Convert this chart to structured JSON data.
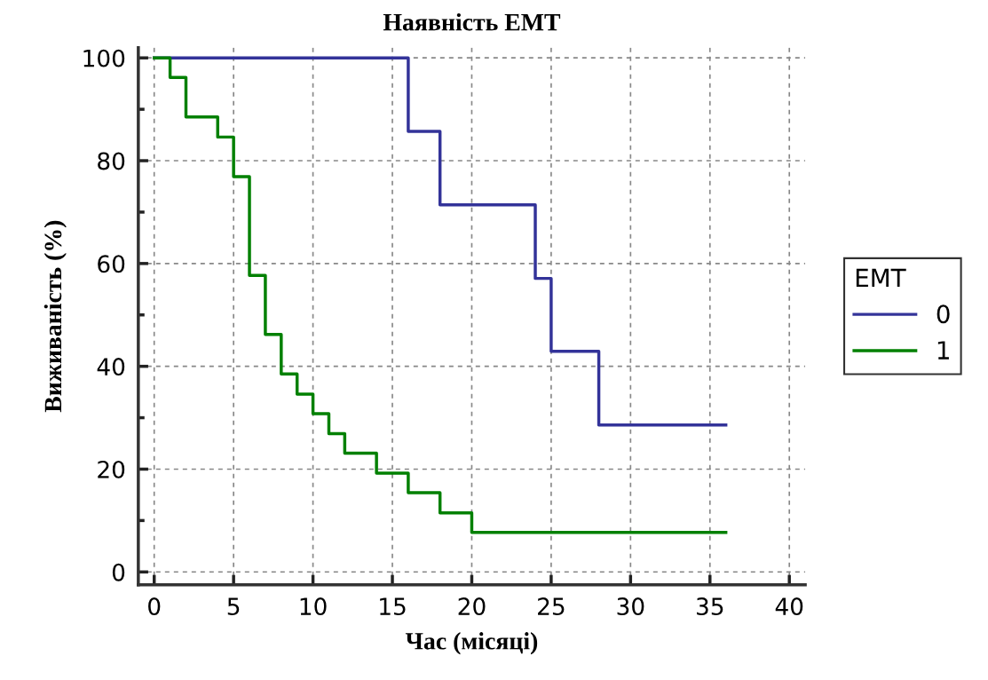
{
  "chart_data": {
    "type": "step",
    "title": "Наявність ЕМТ",
    "xlabel": "Час (місяці)",
    "ylabel": "Виживаність (%)",
    "legend_title": "EMT",
    "legend": "right",
    "grid": true,
    "line_style": "solid",
    "xlim": [
      -1,
      41
    ],
    "ylim": [
      -2.5,
      102
    ],
    "xticks": [
      0,
      5,
      10,
      15,
      20,
      25,
      30,
      35,
      40
    ],
    "yticks": [
      0,
      {
        "value": 10,
        "label": null
      },
      20,
      {
        "value": 30,
        "label": null
      },
      40,
      {
        "value": 50,
        "label": null
      },
      60,
      {
        "value": 70,
        "label": null
      },
      80,
      {
        "value": 90,
        "label": null
      },
      100
    ],
    "series": [
      {
        "name": "0",
        "color": "#333399",
        "x": [
          0,
          16,
          18,
          24,
          25,
          28,
          36
        ],
        "values": [
          100,
          85.7,
          71.4,
          57.1,
          42.9,
          28.6,
          28.6
        ]
      },
      {
        "name": "1",
        "color": "#008000",
        "x": [
          0,
          1,
          2,
          4,
          5,
          6,
          7,
          8,
          9,
          10,
          11,
          12,
          14,
          16,
          18,
          20,
          36
        ],
        "values": [
          100,
          96.2,
          88.5,
          84.6,
          76.9,
          57.7,
          46.2,
          38.5,
          34.6,
          30.8,
          26.9,
          23.1,
          19.2,
          15.4,
          11.5,
          7.7,
          7.7
        ]
      }
    ]
  }
}
